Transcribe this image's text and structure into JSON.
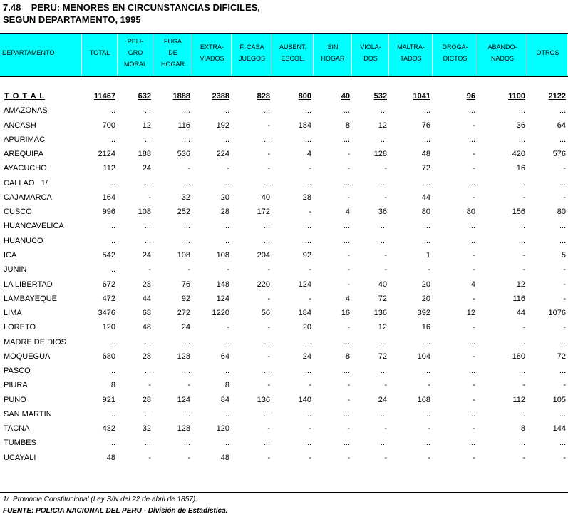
{
  "title": [
    "7.48    PERU: MENORES EN CIRCUNSTANCIAS DIFICILES,",
    "SEGUN DEPARTAMENTO, 1995"
  ],
  "table": {
    "header": [
      [
        "DEPARTAMENTO"
      ],
      [
        "TOTAL"
      ],
      [
        "PELI-",
        "GRO",
        "MORAL"
      ],
      [
        "FUGA",
        "DE",
        "HOGAR"
      ],
      [
        "EXTRA-",
        "VIADOS"
      ],
      [
        "F. CASA",
        "JUEGOS"
      ],
      [
        "AUSENT.",
        "ESCOL."
      ],
      [
        "SIN",
        "HOGAR"
      ],
      [
        "VIOLA-",
        "DOS"
      ],
      [
        "MALTRA-",
        "TADOS"
      ],
      [
        "DROGA-",
        "DICTOS"
      ],
      [
        "ABANDO-",
        "NADOS"
      ],
      [
        "OTROS"
      ]
    ],
    "rows": [
      [
        "T O T A L",
        11467,
        632,
        1888,
        2388,
        828,
        800,
        40,
        532,
        1041,
        96,
        1100,
        2122
      ],
      [
        "AMAZONAS",
        "...",
        "...",
        "...",
        "...",
        "...",
        "...",
        "...",
        "...",
        "...",
        "...",
        "...",
        "..."
      ],
      [
        "ANCASH",
        700,
        12,
        116,
        192,
        "-",
        184,
        8,
        12,
        76,
        "-",
        36,
        64
      ],
      [
        "APURIMAC",
        "...",
        "...",
        "...",
        "...",
        "...",
        "...",
        "...",
        "...",
        "...",
        "...",
        "...",
        "..."
      ],
      [
        "AREQUIPA",
        2124,
        188,
        536,
        224,
        "-",
        4,
        "-",
        128,
        48,
        "-",
        420,
        576
      ],
      [
        "AYACUCHO",
        112,
        24,
        "-",
        "-",
        "-",
        "-",
        "-",
        "-",
        72,
        "-",
        16,
        "-"
      ],
      [
        "CALLAO   1/",
        "...",
        "...",
        "...",
        "...",
        "...",
        "...",
        "...",
        "...",
        "...",
        "...",
        "...",
        "..."
      ],
      [
        "CAJAMARCA",
        164,
        "-",
        32,
        20,
        40,
        28,
        "-",
        "-",
        44,
        "-",
        "-",
        "-"
      ],
      [
        "CUSCO",
        996,
        108,
        252,
        28,
        172,
        "-",
        4,
        36,
        80,
        80,
        156,
        80
      ],
      [
        "HUANCAVELICA",
        "...",
        "...",
        "...",
        "...",
        "...",
        "...",
        "...",
        "...",
        "...",
        "...",
        "...",
        "..."
      ],
      [
        "HUANUCO",
        "...",
        "...",
        "...",
        "...",
        "...",
        "...",
        "...",
        "...",
        "...",
        "...",
        "...",
        "..."
      ],
      [
        "ICA",
        542,
        24,
        108,
        108,
        204,
        92,
        "-",
        "-",
        1,
        "-",
        "-",
        5
      ],
      [
        "JUNIN",
        "...",
        "-",
        "-",
        "-",
        "-",
        "-",
        "-",
        "-",
        "-",
        "-",
        "-",
        "-"
      ],
      [
        "LA LIBERTAD",
        672,
        28,
        76,
        148,
        220,
        124,
        "-",
        40,
        20,
        4,
        12,
        "-"
      ],
      [
        "LAMBAYEQUE",
        472,
        44,
        92,
        124,
        "-",
        "-",
        4,
        72,
        20,
        "-",
        116,
        "-"
      ],
      [
        "LIMA",
        3476,
        68,
        272,
        1220,
        56,
        184,
        16,
        136,
        392,
        12,
        44,
        1076
      ],
      [
        "LORETO",
        120,
        48,
        24,
        "-",
        "-",
        20,
        "-",
        12,
        16,
        "-",
        "-",
        "-"
      ],
      [
        "MADRE DE DIOS",
        "...",
        "...",
        "...",
        "...",
        "...",
        "...",
        "...",
        "...",
        "...",
        "...",
        "...",
        "..."
      ],
      [
        "MOQUEGUA",
        680,
        28,
        128,
        64,
        "-",
        24,
        8,
        72,
        104,
        "-",
        180,
        72
      ],
      [
        "PASCO",
        "...",
        "...",
        "...",
        "...",
        "...",
        "...",
        "...",
        "...",
        "...",
        "...",
        "...",
        "..."
      ],
      [
        "PIURA",
        8,
        "-",
        "-",
        8,
        "-",
        "-",
        "-",
        "-",
        "-",
        "-",
        "-",
        "-"
      ],
      [
        "PUNO",
        921,
        28,
        124,
        84,
        136,
        140,
        "-",
        24,
        168,
        "-",
        112,
        105
      ],
      [
        "SAN MARTIN",
        "...",
        "...",
        "...",
        "...",
        "...",
        "...",
        "...",
        "...",
        "...",
        "...",
        "...",
        "..."
      ],
      [
        "TACNA",
        432,
        32,
        128,
        120,
        "-",
        "-",
        "-",
        "-",
        "-",
        "-",
        8,
        144
      ],
      [
        "TUMBES",
        "...",
        "...",
        "...",
        "...",
        "...",
        "...",
        "...",
        "...",
        "...",
        "...",
        "...",
        "..."
      ],
      [
        "UCAYALI",
        48,
        "-",
        "-",
        48,
        "-",
        "-",
        "-",
        "-",
        "-",
        "-",
        "-",
        "-"
      ]
    ]
  },
  "footnote": "1/  Provincia Constitucional (Ley S/N del 22 de abril de 1857).",
  "source": "FUENTE: POLICIA NACIONAL DEL PERU - División de Estadística."
}
